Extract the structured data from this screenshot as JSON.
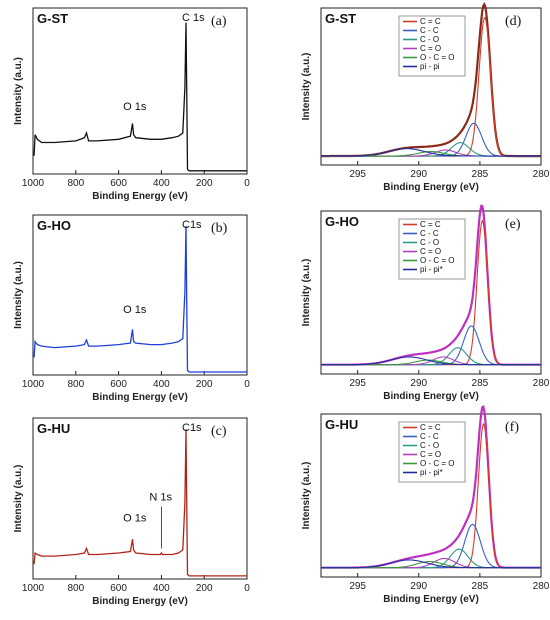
{
  "colors": {
    "C = C": "#d23b2a",
    "C - C": "#3a5fc8",
    "C - O": "#2a9a8a",
    "C = O": "#b040c0",
    "O - C = O": "#3a9a3a",
    "pi - pi": "#1f2fa0",
    "pi - pi*": "#1f2fa0",
    "survey_black": "#111111",
    "survey_blue": "#1f3fd8",
    "survey_red": "#b02418",
    "hires_envelope_d": "#8a2a1a",
    "hires_envelope_ef": "#c030c0"
  },
  "chart_data": [
    {
      "id": "a",
      "type": "line",
      "panel_tag": "(a)",
      "sample": "G-ST",
      "xlabel": "Binding Energy (eV)",
      "ylabel": "Intensity (a.u.)",
      "xlim": [
        1000,
        0
      ],
      "x_reversed": true,
      "ylim": [
        0,
        1.0
      ],
      "xticks": [
        "1000",
        "800",
        "600",
        "400",
        "200",
        "0"
      ],
      "color_key": "survey_black",
      "annotations": [
        {
          "text": "O 1s",
          "x": 532,
          "y": 0.38
        },
        {
          "text": "C 1s",
          "x": 285,
          "y": 1.0
        }
      ],
      "series": [
        {
          "x": [
            1000,
            995,
            990,
            980,
            960,
            900,
            800,
            760,
            750,
            740,
            700,
            600,
            545,
            535,
            530,
            520,
            450,
            400,
            350,
            320,
            300,
            290,
            285,
            282,
            278,
            270,
            200,
            100,
            50,
            0
          ],
          "y": [
            0.12,
            0.12,
            0.25,
            0.22,
            0.2,
            0.2,
            0.21,
            0.23,
            0.26,
            0.21,
            0.21,
            0.22,
            0.24,
            0.32,
            0.25,
            0.23,
            0.22,
            0.22,
            0.23,
            0.24,
            0.26,
            0.55,
            0.96,
            0.55,
            0.03,
            0.02,
            0.02,
            0.02,
            0.02,
            0.02
          ]
        }
      ]
    },
    {
      "id": "b",
      "type": "line",
      "panel_tag": "(b)",
      "sample": "G-HO",
      "xlabel": "Binding Energy (eV)",
      "ylabel": "Intensity (a.u.)",
      "xlim": [
        1000,
        0
      ],
      "x_reversed": true,
      "ylim": [
        0,
        1.0
      ],
      "xticks": [
        "1000",
        "800",
        "600",
        "400",
        "200",
        "0"
      ],
      "color_key": "survey_blue",
      "annotations": [
        {
          "text": "O 1s",
          "x": 532,
          "y": 0.38
        },
        {
          "text": "C1s",
          "x": 285,
          "y": 1.0
        }
      ],
      "series": [
        {
          "x": [
            1000,
            995,
            990,
            980,
            960,
            900,
            800,
            760,
            750,
            740,
            700,
            600,
            545,
            535,
            530,
            520,
            450,
            400,
            350,
            320,
            300,
            290,
            285,
            282,
            278,
            270,
            200,
            100,
            50,
            0
          ],
          "y": [
            0.12,
            0.12,
            0.22,
            0.2,
            0.19,
            0.18,
            0.19,
            0.2,
            0.23,
            0.19,
            0.19,
            0.2,
            0.21,
            0.3,
            0.22,
            0.21,
            0.2,
            0.2,
            0.21,
            0.22,
            0.24,
            0.55,
            0.98,
            0.5,
            0.03,
            0.02,
            0.02,
            0.02,
            0.02,
            0.02
          ]
        }
      ]
    },
    {
      "id": "c",
      "type": "line",
      "panel_tag": "(c)",
      "sample": "G-HU",
      "xlabel": "Binding Energy (eV)",
      "ylabel": "Intensity (a.u.)",
      "xlim": [
        1000,
        0
      ],
      "x_reversed": true,
      "ylim": [
        0,
        1.0
      ],
      "xticks": [
        "1000",
        "800",
        "600",
        "400",
        "200",
        "0"
      ],
      "color_key": "survey_red",
      "annotations": [
        {
          "text": "O 1s",
          "x": 532,
          "y": 0.35
        },
        {
          "text": "N 1s",
          "x": 400,
          "y": 0.5
        },
        {
          "text": "C1s",
          "x": 285,
          "y": 1.0
        }
      ],
      "series": [
        {
          "x": [
            1000,
            995,
            990,
            980,
            960,
            900,
            800,
            760,
            750,
            740,
            700,
            600,
            545,
            535,
            530,
            520,
            450,
            405,
            400,
            395,
            350,
            320,
            300,
            290,
            285,
            282,
            278,
            270,
            200,
            100,
            50,
            0
          ],
          "y": [
            0.1,
            0.1,
            0.17,
            0.16,
            0.15,
            0.15,
            0.16,
            0.17,
            0.2,
            0.16,
            0.16,
            0.17,
            0.18,
            0.26,
            0.19,
            0.17,
            0.16,
            0.16,
            0.17,
            0.16,
            0.16,
            0.17,
            0.19,
            0.5,
            0.98,
            0.5,
            0.03,
            0.02,
            0.02,
            0.02,
            0.02,
            0.02
          ]
        }
      ]
    },
    {
      "id": "d",
      "type": "line",
      "panel_tag": "(d)",
      "sample": "G-ST",
      "xlabel": "Binding Energy (eV)",
      "ylabel": "Intensity (a.u.)",
      "xlim": [
        298,
        280
      ],
      "x_reversed": true,
      "ylim": [
        0,
        1.0
      ],
      "xticks": [
        "295",
        "290",
        "285",
        "280"
      ],
      "xtick_values": [
        295,
        290,
        285,
        280
      ],
      "envelope_color_key": "hires_envelope_d",
      "legend": [
        "C = C",
        "C - C",
        "C - O",
        "C = O",
        "O - C = O",
        "pi - pi"
      ],
      "components": [
        {
          "name": "C = C",
          "center": 284.6,
          "fwhm": 1.1,
          "height": 0.93
        },
        {
          "name": "C - C",
          "center": 285.5,
          "fwhm": 1.5,
          "height": 0.22
        },
        {
          "name": "C - O",
          "center": 286.6,
          "fwhm": 1.7,
          "height": 0.09
        },
        {
          "name": "C = O",
          "center": 287.8,
          "fwhm": 2.0,
          "height": 0.04
        },
        {
          "name": "O - C = O",
          "center": 289.0,
          "fwhm": 2.5,
          "height": 0.03
        },
        {
          "name": "pi - pi",
          "center": 291.0,
          "fwhm": 3.5,
          "height": 0.05
        }
      ]
    },
    {
      "id": "e",
      "type": "line",
      "panel_tag": "(e)",
      "sample": "G-HO",
      "xlabel": "Binding Energy (eV)",
      "ylabel": "Intensity (a.u.)",
      "xlim": [
        298,
        280
      ],
      "x_reversed": true,
      "ylim": [
        0,
        1.0
      ],
      "xticks": [
        "295",
        "290",
        "285",
        "280"
      ],
      "xtick_values": [
        295,
        290,
        285,
        280
      ],
      "envelope_color_key": "hires_envelope_ef",
      "legend": [
        "C = C",
        "C - C",
        "C - O",
        "C = O",
        "O - C = O",
        "pi - pi*"
      ],
      "components": [
        {
          "name": "C = C",
          "center": 284.8,
          "fwhm": 1.0,
          "height": 0.93
        },
        {
          "name": "C - C",
          "center": 285.7,
          "fwhm": 1.5,
          "height": 0.25
        },
        {
          "name": "C - O",
          "center": 286.8,
          "fwhm": 1.7,
          "height": 0.11
        },
        {
          "name": "C = O",
          "center": 288.0,
          "fwhm": 2.0,
          "height": 0.05
        },
        {
          "name": "O - C = O",
          "center": 289.2,
          "fwhm": 2.5,
          "height": 0.03
        },
        {
          "name": "pi - pi*",
          "center": 290.8,
          "fwhm": 3.5,
          "height": 0.05
        }
      ]
    },
    {
      "id": "f",
      "type": "line",
      "panel_tag": "(f)",
      "sample": "G-HU",
      "xlabel": "Binding Energy (eV)",
      "ylabel": "Intensity (a.u.)",
      "xlim": [
        298,
        280
      ],
      "x_reversed": true,
      "ylim": [
        0,
        1.0
      ],
      "xticks": [
        "295",
        "290",
        "285",
        "280"
      ],
      "xtick_values": [
        295,
        290,
        285,
        280
      ],
      "envelope_color_key": "hires_envelope_ef",
      "legend": [
        "C = C",
        "C - C",
        "C - O",
        "C = O",
        "O - C = O",
        "pi - pi*"
      ],
      "components": [
        {
          "name": "C = C",
          "center": 284.7,
          "fwhm": 1.0,
          "height": 0.93
        },
        {
          "name": "C - C",
          "center": 285.6,
          "fwhm": 1.5,
          "height": 0.28
        },
        {
          "name": "C - O",
          "center": 286.7,
          "fwhm": 1.7,
          "height": 0.12
        },
        {
          "name": "C = O",
          "center": 287.9,
          "fwhm": 2.0,
          "height": 0.06
        },
        {
          "name": "O - C = O",
          "center": 289.1,
          "fwhm": 2.5,
          "height": 0.04
        },
        {
          "name": "pi - pi*",
          "center": 290.8,
          "fwhm": 3.5,
          "height": 0.05
        }
      ]
    }
  ]
}
